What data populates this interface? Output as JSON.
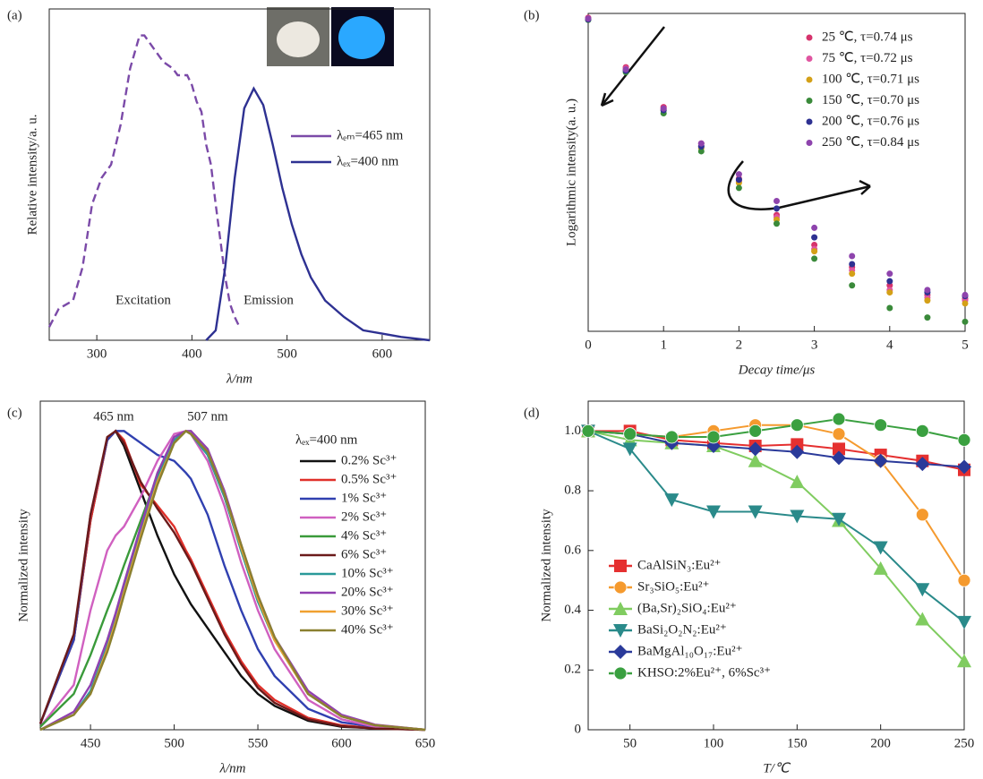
{
  "chart_data": [
    {
      "panel_label": "(a)",
      "type": "line",
      "x_label": "λ/nm",
      "y_label": "Relative intensity/a. u.",
      "xlim": [
        250,
        650
      ],
      "xticks": [
        300,
        400,
        500,
        600
      ],
      "ylim": [
        0,
        1
      ],
      "annotations": [
        "Excitation",
        "Emission"
      ],
      "series": [
        {
          "name": "λₑₘ=465 nm",
          "color": "#7b4aa8",
          "dash": true,
          "x": [
            250,
            260,
            275,
            285,
            295,
            305,
            315,
            325,
            335,
            345,
            350,
            360,
            370,
            380,
            385,
            395,
            400,
            405,
            410,
            415,
            420,
            425,
            430,
            435,
            440,
            445,
            450
          ],
          "values": [
            0.04,
            0.095,
            0.12,
            0.22,
            0.41,
            0.49,
            0.53,
            0.65,
            0.82,
            0.92,
            0.92,
            0.88,
            0.84,
            0.82,
            0.8,
            0.8,
            0.77,
            0.72,
            0.69,
            0.59,
            0.53,
            0.41,
            0.3,
            0.19,
            0.11,
            0.07,
            0.04
          ]
        },
        {
          "name": "λₑₓ=400 nm",
          "color": "#2e3192",
          "x": [
            415,
            425,
            435,
            445,
            455,
            465,
            475,
            485,
            495,
            505,
            515,
            525,
            540,
            560,
            580,
            600,
            620,
            650
          ],
          "values": [
            0,
            0.03,
            0.22,
            0.49,
            0.7,
            0.76,
            0.71,
            0.59,
            0.46,
            0.35,
            0.26,
            0.19,
            0.12,
            0.07,
            0.03,
            0.02,
            0.01,
            0
          ]
        }
      ]
    },
    {
      "panel_label": "(b)",
      "type": "scatter",
      "x_label": "Decay time/μs",
      "y_label": "Logarithmic intensity(a. u.)",
      "xlim": [
        0,
        5
      ],
      "xticks": [
        0,
        1,
        2,
        3,
        4,
        5
      ],
      "ylim": [
        0.005,
        2.15
      ],
      "log": true,
      "x": [
        0,
        0.5,
        1,
        1.5,
        2,
        2.5,
        3,
        3.5,
        4,
        4.5,
        5
      ],
      "series": [
        {
          "name": "25 ℃, τ=0.74 μs",
          "color": "#d6336c",
          "values": [
            1.98,
            0.77,
            0.36,
            0.18,
            0.092,
            0.046,
            0.026,
            0.017,
            0.012,
            0.01,
            0.0093
          ]
        },
        {
          "name": "75 ℃, τ=0.72 μs",
          "color": "#e055a0",
          "values": [
            1.95,
            0.75,
            0.35,
            0.17,
            0.088,
            0.044,
            0.024,
            0.016,
            0.011,
            0.0095,
            0.009
          ]
        },
        {
          "name": "100 ℃, τ=0.71 μs",
          "color": "#d4a017",
          "values": [
            1.93,
            0.73,
            0.34,
            0.165,
            0.085,
            0.042,
            0.023,
            0.015,
            0.0105,
            0.009,
            0.0085
          ]
        },
        {
          "name": "150 ℃, τ=0.70 μs",
          "color": "#3a8a3a",
          "values": [
            1.9,
            0.7,
            0.32,
            0.155,
            0.077,
            0.039,
            0.02,
            0.012,
            0.0078,
            0.0065,
            0.006
          ]
        },
        {
          "name": "200 ℃, τ=0.76 μs",
          "color": "#2e3192",
          "values": [
            1.92,
            0.72,
            0.34,
            0.17,
            0.09,
            0.052,
            0.03,
            0.018,
            0.013,
            0.0105,
            0.0098
          ]
        },
        {
          "name": "250 ℃, τ=0.84 μs",
          "color": "#8e44ad",
          "values": [
            1.95,
            0.74,
            0.35,
            0.18,
            0.1,
            0.06,
            0.036,
            0.021,
            0.015,
            0.011,
            0.01
          ]
        }
      ]
    },
    {
      "panel_label": "(c)",
      "type": "line",
      "x_label": "λ/nm",
      "y_label": "Normalized intensity",
      "xlim": [
        420,
        650
      ],
      "xticks": [
        450,
        500,
        550,
        600,
        650
      ],
      "ylim": [
        0,
        1.1
      ],
      "annotations": [
        "465 nm",
        "507 nm"
      ],
      "legend_title": "λₑₓ=400 nm",
      "x": [
        420,
        440,
        450,
        460,
        465,
        470,
        480,
        490,
        500,
        507,
        510,
        520,
        530,
        540,
        550,
        560,
        580,
        600,
        620,
        650
      ],
      "series": [
        {
          "name": "0.2% Sc³⁺",
          "color": "#111111",
          "values": [
            0.02,
            0.3,
            0.7,
            0.97,
            1.0,
            0.95,
            0.8,
            0.65,
            0.52,
            0.45,
            0.42,
            0.34,
            0.26,
            0.18,
            0.12,
            0.08,
            0.03,
            0.01,
            0.005,
            0
          ]
        },
        {
          "name": "0.5% Sc³⁺",
          "color": "#e0302a",
          "values": [
            0.02,
            0.3,
            0.7,
            0.97,
            1.0,
            0.97,
            0.82,
            0.75,
            0.68,
            0.6,
            0.57,
            0.45,
            0.33,
            0.23,
            0.15,
            0.1,
            0.04,
            0.015,
            0.005,
            0
          ]
        },
        {
          "name": "1% Sc³⁺",
          "color": "#3040b0",
          "values": [
            0.02,
            0.3,
            0.72,
            0.97,
            1.0,
            1.0,
            0.96,
            0.92,
            0.9,
            0.86,
            0.84,
            0.72,
            0.55,
            0.4,
            0.27,
            0.18,
            0.07,
            0.025,
            0.01,
            0
          ]
        },
        {
          "name": "2% Sc³⁺",
          "color": "#d060c0",
          "values": [
            0.01,
            0.15,
            0.4,
            0.6,
            0.65,
            0.68,
            0.78,
            0.9,
            0.99,
            1.0,
            0.99,
            0.9,
            0.75,
            0.56,
            0.4,
            0.27,
            0.1,
            0.035,
            0.01,
            0
          ]
        },
        {
          "name": "4% Sc³⁺",
          "color": "#3a9a3a",
          "values": [
            0.01,
            0.12,
            0.25,
            0.4,
            0.47,
            0.55,
            0.7,
            0.85,
            0.96,
            1.0,
            0.99,
            0.92,
            0.78,
            0.6,
            0.43,
            0.3,
            0.12,
            0.045,
            0.015,
            0
          ]
        },
        {
          "name": "6% Sc³⁺",
          "color": "#6b1a1a",
          "values": [
            0.02,
            0.32,
            0.72,
            0.98,
            1.0,
            0.96,
            0.83,
            0.74,
            0.66,
            0.59,
            0.56,
            0.44,
            0.32,
            0.22,
            0.14,
            0.09,
            0.035,
            0.012,
            0.004,
            0
          ]
        },
        {
          "name": "10% Sc³⁺",
          "color": "#2a9a9a",
          "values": [
            0,
            0.05,
            0.13,
            0.28,
            0.37,
            0.47,
            0.66,
            0.84,
            0.97,
            1.0,
            0.99,
            0.92,
            0.78,
            0.6,
            0.43,
            0.3,
            0.12,
            0.045,
            0.015,
            0
          ]
        },
        {
          "name": "20% Sc³⁺",
          "color": "#9040b0",
          "values": [
            0,
            0.06,
            0.15,
            0.3,
            0.39,
            0.49,
            0.68,
            0.86,
            0.98,
            1.0,
            1.0,
            0.94,
            0.8,
            0.62,
            0.45,
            0.31,
            0.13,
            0.05,
            0.017,
            0
          ]
        },
        {
          "name": "30% Sc³⁺",
          "color": "#f0a030",
          "values": [
            0,
            0.05,
            0.12,
            0.27,
            0.36,
            0.46,
            0.65,
            0.83,
            0.96,
            1.0,
            0.99,
            0.93,
            0.79,
            0.61,
            0.44,
            0.3,
            0.12,
            0.045,
            0.015,
            0
          ]
        },
        {
          "name": "40% Sc³⁺",
          "color": "#8a8030",
          "values": [
            0,
            0.05,
            0.12,
            0.26,
            0.35,
            0.45,
            0.64,
            0.82,
            0.96,
            1.0,
            0.99,
            0.93,
            0.79,
            0.62,
            0.45,
            0.31,
            0.12,
            0.045,
            0.015,
            0
          ]
        }
      ]
    },
    {
      "panel_label": "(d)",
      "type": "line",
      "x_label": "T/℃",
      "y_label": "Normalized intensity",
      "xlim": [
        25,
        250
      ],
      "xticks": [
        50,
        100,
        150,
        200,
        250
      ],
      "ylim": [
        0,
        1.1
      ],
      "yticks": [
        0,
        0.2,
        0.4,
        0.6,
        0.8,
        {
          "value": 1,
          "label": "1.0"
        }
      ],
      "x": [
        25,
        50,
        75,
        100,
        125,
        150,
        175,
        200,
        225,
        250
      ],
      "series": [
        {
          "name": "CaAlSiN₃:Eu²⁺",
          "color": "#e53030",
          "marker": "square",
          "values": [
            1.0,
            1.0,
            0.97,
            0.96,
            0.95,
            0.955,
            0.94,
            0.92,
            0.9,
            0.87
          ]
        },
        {
          "name": "Sr₃SiO₅:Eu²⁺",
          "color": "#f59a2e",
          "marker": "circle",
          "values": [
            1.0,
            0.99,
            0.98,
            1.0,
            1.02,
            1.02,
            0.99,
            0.9,
            0.72,
            0.5
          ]
        },
        {
          "name": "(Ba,Sr)₂SiO₄:Eu²⁺",
          "color": "#80cc60",
          "marker": "triangle-up",
          "values": [
            1.0,
            0.97,
            0.96,
            0.95,
            0.9,
            0.83,
            0.7,
            0.54,
            0.37,
            0.23
          ]
        },
        {
          "name": "BaSi₂O₂N₂:Eu²⁺",
          "color": "#2a8a8a",
          "marker": "triangle-down",
          "values": [
            1.0,
            0.94,
            0.77,
            0.73,
            0.73,
            0.715,
            0.705,
            0.61,
            0.47,
            0.36
          ]
        },
        {
          "name": "BaMgAl₁₀O₁₇:Eu²⁺",
          "color": "#2a3a9a",
          "marker": "diamond",
          "values": [
            1.0,
            0.99,
            0.96,
            0.95,
            0.94,
            0.93,
            0.91,
            0.9,
            0.89,
            0.88
          ]
        },
        {
          "name": "KHSO:2%Eu²⁺, 6%Sc³⁺",
          "color": "#3aa040",
          "marker": "circle",
          "values": [
            1.0,
            0.99,
            0.98,
            0.98,
            1.0,
            1.02,
            1.04,
            1.02,
            1.0,
            0.97
          ]
        }
      ]
    }
  ]
}
